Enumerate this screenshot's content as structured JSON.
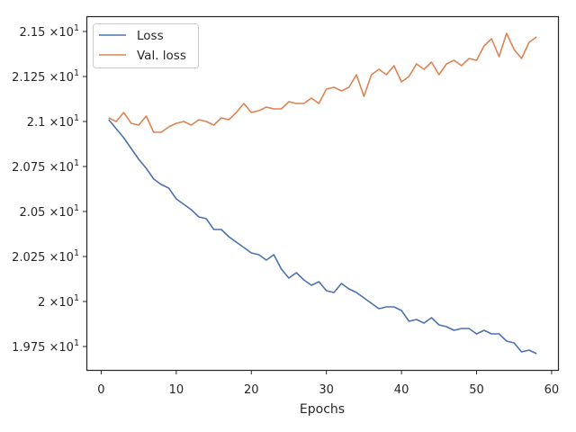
{
  "chart_data": {
    "type": "line",
    "title": "",
    "xlabel": "Epochs",
    "ylabel": "",
    "xlim": [
      -1.85,
      60.85
    ],
    "ylim": [
      19.62,
      21.58
    ],
    "xticks": [
      0,
      10,
      20,
      30,
      40,
      50,
      60
    ],
    "yticks": [
      {
        "value": 19.75,
        "mantissa": "1.975"
      },
      {
        "value": 20.0,
        "mantissa": "2"
      },
      {
        "value": 20.25,
        "mantissa": "2.025"
      },
      {
        "value": 20.5,
        "mantissa": "2.05"
      },
      {
        "value": 20.75,
        "mantissa": "2.075"
      },
      {
        "value": 21.0,
        "mantissa": "2.1"
      },
      {
        "value": 21.25,
        "mantissa": "2.125"
      },
      {
        "value": 21.5,
        "mantissa": "2.15"
      }
    ],
    "ytick_suffix": "×10",
    "ytick_exponent": "1",
    "legend_position": "top-left",
    "grid": false,
    "x": [
      1,
      2,
      3,
      4,
      5,
      6,
      7,
      8,
      9,
      10,
      11,
      12,
      13,
      14,
      15,
      16,
      17,
      18,
      19,
      20,
      21,
      22,
      23,
      24,
      25,
      26,
      27,
      28,
      29,
      30,
      31,
      32,
      33,
      34,
      35,
      36,
      37,
      38,
      39,
      40,
      41,
      42,
      43,
      44,
      45,
      46,
      47,
      48,
      49,
      50,
      51,
      52,
      53,
      54,
      55,
      56,
      57,
      58
    ],
    "series": [
      {
        "name": "Loss",
        "color": "#4c72b0",
        "values": [
          21.01,
          20.96,
          20.91,
          20.85,
          20.79,
          20.74,
          20.68,
          20.65,
          20.63,
          20.57,
          20.54,
          20.51,
          20.47,
          20.46,
          20.4,
          20.4,
          20.36,
          20.33,
          20.3,
          20.27,
          20.26,
          20.23,
          20.26,
          20.18,
          20.13,
          20.16,
          20.12,
          20.09,
          20.11,
          20.06,
          20.05,
          20.1,
          20.07,
          20.05,
          20.02,
          19.99,
          19.96,
          19.97,
          19.97,
          19.95,
          19.89,
          19.9,
          19.88,
          19.91,
          19.87,
          19.86,
          19.84,
          19.85,
          19.85,
          19.82,
          19.84,
          19.82,
          19.82,
          19.78,
          19.77,
          19.72,
          19.73,
          19.71
        ]
      },
      {
        "name": "Val. loss",
        "color": "#dd8452",
        "values": [
          21.02,
          21.0,
          21.05,
          20.99,
          20.98,
          21.03,
          20.94,
          20.94,
          20.97,
          20.99,
          21.0,
          20.98,
          21.01,
          21.0,
          20.98,
          21.02,
          21.01,
          21.05,
          21.1,
          21.05,
          21.06,
          21.08,
          21.07,
          21.07,
          21.11,
          21.1,
          21.1,
          21.13,
          21.1,
          21.18,
          21.19,
          21.17,
          21.19,
          21.26,
          21.14,
          21.26,
          21.29,
          21.26,
          21.31,
          21.22,
          21.25,
          21.32,
          21.29,
          21.33,
          21.26,
          21.32,
          21.34,
          21.31,
          21.35,
          21.34,
          21.42,
          21.46,
          21.36,
          21.49,
          21.4,
          21.35,
          21.44,
          21.47
        ]
      }
    ]
  }
}
